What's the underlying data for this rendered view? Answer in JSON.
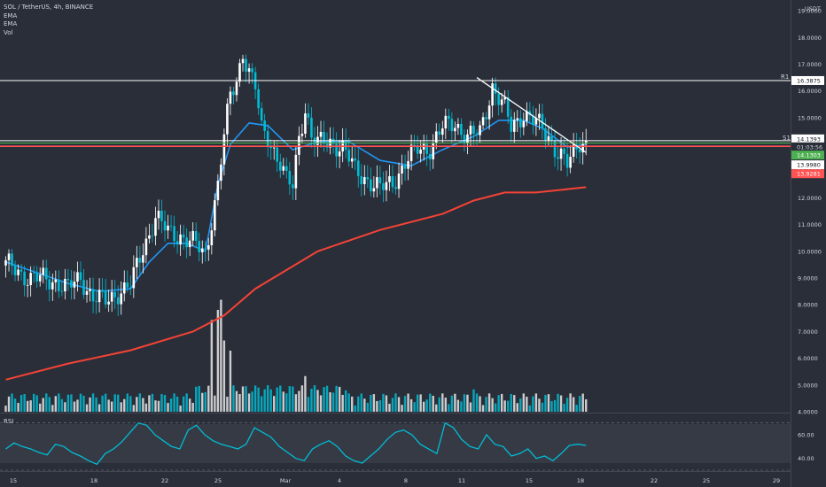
{
  "header": {
    "symbol_line": "SOL / TetherUS, 4h, BINANCE"
  },
  "legend": {
    "items": [
      "EMA",
      "EMA",
      "Vol"
    ]
  },
  "rsi_label": "RSI",
  "currency_label": "USDT",
  "colors": {
    "background": "#2a2e39",
    "up": "#ffffff",
    "down": "#00bcd4",
    "ema_fast": "#2196f3",
    "ema_slow": "#f44336",
    "support": "#ff5252",
    "support_green": "#4caf50",
    "rsi": "#00bcd4"
  },
  "chart_data": {
    "type": "candlestick",
    "x_ticks": [
      "15",
      "18",
      "22",
      "25",
      "Mar",
      "4",
      "8",
      "11",
      "15",
      "18",
      "22",
      "25",
      "29"
    ],
    "y_ticks": [
      "4.0000",
      "5.0000",
      "6.0000",
      "7.0000",
      "8.0000",
      "9.0000",
      "10.0000",
      "11.0000",
      "12.0000",
      "13.0000",
      "14.0000",
      "15.0000",
      "16.0000",
      "17.0000",
      "18.0000",
      "19.0000"
    ],
    "ylim": [
      4.0,
      19.4
    ],
    "levels": [
      {
        "label": "R1",
        "value": 16.3875,
        "badge": "16.3875"
      },
      {
        "label": "S1",
        "value": 14.1393,
        "badge": "14.1393"
      }
    ],
    "price_badges": [
      {
        "label": "01:03:56",
        "value": 14.1393
      },
      {
        "label": "14.1303",
        "value": 14.1303
      },
      {
        "label": "13.9980",
        "value": 13.998
      },
      {
        "label": "13.9281",
        "value": 13.9281
      }
    ],
    "close_anchors": [
      [
        0,
        9.5
      ],
      [
        8,
        9.0
      ],
      [
        16,
        8.9
      ],
      [
        20,
        8.6
      ],
      [
        24,
        9.0
      ],
      [
        28,
        8.3
      ],
      [
        32,
        8.1
      ],
      [
        36,
        8.5
      ],
      [
        40,
        8.7
      ],
      [
        44,
        10.1
      ],
      [
        48,
        11.3
      ],
      [
        52,
        10.7
      ],
      [
        56,
        10.6
      ],
      [
        60,
        10.3
      ],
      [
        64,
        9.9
      ],
      [
        68,
        12.5
      ],
      [
        70,
        14.3
      ],
      [
        72,
        15.8
      ],
      [
        74,
        16.4
      ],
      [
        76,
        17.5
      ],
      [
        78,
        16.7
      ],
      [
        80,
        16.1
      ],
      [
        82,
        14.5
      ],
      [
        84,
        14.3
      ],
      [
        86,
        13.8
      ],
      [
        88,
        13.3
      ],
      [
        90,
        12.6
      ],
      [
        92,
        12.4
      ],
      [
        94,
        14.3
      ],
      [
        96,
        15.4
      ],
      [
        98,
        14.3
      ],
      [
        100,
        14.0
      ],
      [
        104,
        14.1
      ],
      [
        108,
        13.9
      ],
      [
        112,
        13.0
      ],
      [
        116,
        12.7
      ],
      [
        120,
        12.3
      ],
      [
        124,
        12.6
      ],
      [
        128,
        13.3
      ],
      [
        132,
        13.8
      ],
      [
        136,
        13.9
      ],
      [
        140,
        14.6
      ],
      [
        144,
        14.8
      ],
      [
        148,
        14.3
      ],
      [
        152,
        14.4
      ],
      [
        156,
        16.2
      ],
      [
        160,
        15.3
      ],
      [
        162,
        14.6
      ],
      [
        166,
        15.2
      ],
      [
        170,
        14.8
      ],
      [
        174,
        14.3
      ],
      [
        176,
        13.9
      ],
      [
        178,
        13.6
      ],
      [
        180,
        13.2
      ],
      [
        182,
        13.6
      ],
      [
        184,
        14.1
      ],
      [
        186,
        14.13
      ]
    ],
    "volume_spikes": [
      {
        "index": 66,
        "value": 9
      },
      {
        "index": 68,
        "value": 10
      },
      {
        "index": 69,
        "value": 11
      },
      {
        "index": 70,
        "value": 7
      },
      {
        "index": 72,
        "value": 6
      },
      {
        "index": 96,
        "value": 3.5
      },
      {
        "index": 150,
        "value": 2.2
      }
    ],
    "ema_fast": [
      [
        0,
        9.6
      ],
      [
        10,
        9.2
      ],
      [
        20,
        8.8
      ],
      [
        30,
        8.5
      ],
      [
        40,
        8.6
      ],
      [
        46,
        9.6
      ],
      [
        52,
        10.3
      ],
      [
        58,
        10.3
      ],
      [
        64,
        10.0
      ],
      [
        68,
        12.5
      ],
      [
        72,
        14.0
      ],
      [
        78,
        14.8
      ],
      [
        84,
        14.7
      ],
      [
        92,
        13.8
      ],
      [
        100,
        14.1
      ],
      [
        110,
        14.1
      ],
      [
        120,
        13.4
      ],
      [
        130,
        13.2
      ],
      [
        140,
        13.8
      ],
      [
        150,
        14.3
      ],
      [
        158,
        14.9
      ],
      [
        166,
        14.9
      ],
      [
        172,
        14.6
      ],
      [
        180,
        13.9
      ],
      [
        186,
        14.0
      ]
    ],
    "ema_slow": [
      [
        0,
        5.2
      ],
      [
        20,
        5.8
      ],
      [
        40,
        6.3
      ],
      [
        60,
        7.0
      ],
      [
        70,
        7.6
      ],
      [
        80,
        8.6
      ],
      [
        100,
        10.0
      ],
      [
        120,
        10.8
      ],
      [
        140,
        11.4
      ],
      [
        150,
        11.9
      ],
      [
        160,
        12.2
      ],
      [
        170,
        12.2
      ],
      [
        186,
        12.4
      ]
    ],
    "trendline": {
      "from": [
        151,
        16.5
      ],
      "to": [
        186,
        13.7
      ]
    },
    "rsi": {
      "label": "RSI",
      "ylim": [
        30,
        75
      ],
      "ticks": [
        "40.00",
        "60.00"
      ],
      "values": [
        48,
        53,
        50,
        48,
        45,
        43,
        52,
        50,
        45,
        42,
        38,
        35,
        44,
        48,
        54,
        62,
        70,
        68,
        60,
        55,
        50,
        48,
        64,
        68,
        60,
        55,
        52,
        50,
        48,
        52,
        66,
        62,
        58,
        50,
        45,
        40,
        38,
        48,
        52,
        55,
        50,
        42,
        38,
        36,
        42,
        48,
        56,
        62,
        64,
        60,
        52,
        48,
        44,
        70,
        66,
        56,
        50,
        48,
        60,
        52,
        50,
        42,
        44,
        48,
        40,
        42,
        38,
        44,
        51,
        52,
        51
      ]
    }
  }
}
